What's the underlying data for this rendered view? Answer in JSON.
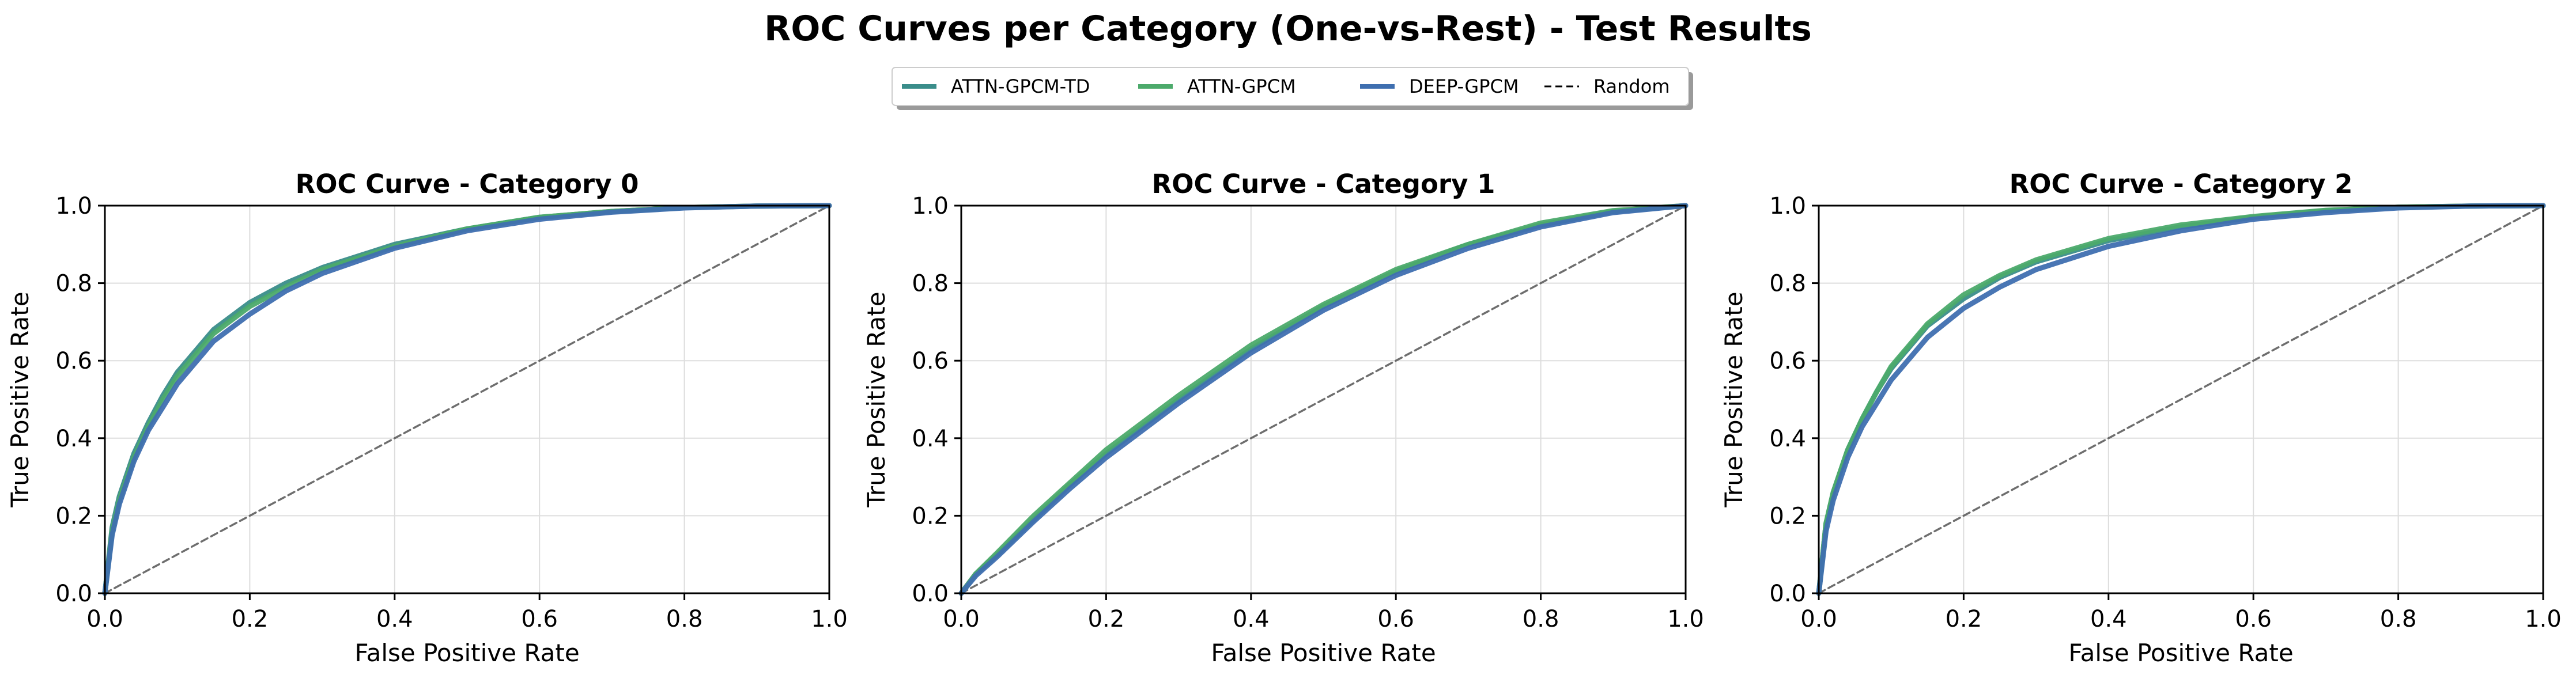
{
  "figure": {
    "title": "ROC Curves per Category (One-vs-Rest) - Test Results",
    "legend": {
      "placement": "top-center",
      "entries": [
        {
          "name": "ATTN-GPCM-TD",
          "color": "#3a8d8a",
          "style": "solid"
        },
        {
          "name": "ATTN-GPCM",
          "color": "#4caa6b",
          "style": "solid"
        },
        {
          "name": "DEEP-GPCM",
          "color": "#3f6fb0",
          "style": "solid"
        },
        {
          "name": "Random",
          "color": "#000000",
          "style": "dashed"
        }
      ]
    }
  },
  "chart_data": [
    {
      "type": "line",
      "title": "ROC Curve - Category 0",
      "xlabel": "False Positive Rate",
      "ylabel": "True Positive Rate",
      "xlim": [
        0,
        1
      ],
      "ylim": [
        0,
        1
      ],
      "xticks": [
        "0.0",
        "0.2",
        "0.4",
        "0.6",
        "0.8",
        "1.0"
      ],
      "yticks": [
        "0.0",
        "0.2",
        "0.4",
        "0.6",
        "0.8",
        "1.0"
      ],
      "grid": true,
      "x": [
        0,
        0.01,
        0.02,
        0.04,
        0.06,
        0.08,
        0.1,
        0.15,
        0.2,
        0.25,
        0.3,
        0.4,
        0.5,
        0.6,
        0.7,
        0.8,
        0.9,
        1.0
      ],
      "series": [
        {
          "name": "ATTN-GPCM-TD",
          "values": [
            0,
            0.17,
            0.25,
            0.36,
            0.44,
            0.51,
            0.57,
            0.68,
            0.75,
            0.8,
            0.84,
            0.9,
            0.94,
            0.97,
            0.985,
            0.995,
            0.999,
            1.0
          ]
        },
        {
          "name": "ATTN-GPCM",
          "values": [
            0,
            0.16,
            0.24,
            0.35,
            0.43,
            0.5,
            0.56,
            0.67,
            0.74,
            0.79,
            0.835,
            0.895,
            0.94,
            0.97,
            0.985,
            0.995,
            0.999,
            1.0
          ]
        },
        {
          "name": "DEEP-GPCM",
          "values": [
            0,
            0.15,
            0.23,
            0.34,
            0.42,
            0.48,
            0.54,
            0.65,
            0.72,
            0.78,
            0.825,
            0.89,
            0.935,
            0.965,
            0.983,
            0.994,
            0.999,
            1.0
          ]
        },
        {
          "name": "Random",
          "values": [
            0,
            0.01,
            0.02,
            0.04,
            0.06,
            0.08,
            0.1,
            0.15,
            0.2,
            0.25,
            0.3,
            0.4,
            0.5,
            0.6,
            0.7,
            0.8,
            0.9,
            1.0
          ]
        }
      ]
    },
    {
      "type": "line",
      "title": "ROC Curve - Category 1",
      "xlabel": "False Positive Rate",
      "ylabel": "True Positive Rate",
      "xlim": [
        0,
        1
      ],
      "ylim": [
        0,
        1
      ],
      "xticks": [
        "0.0",
        "0.2",
        "0.4",
        "0.6",
        "0.8",
        "1.0"
      ],
      "yticks": [
        "0.0",
        "0.2",
        "0.4",
        "0.6",
        "0.8",
        "1.0"
      ],
      "grid": true,
      "x": [
        0,
        0.02,
        0.05,
        0.1,
        0.15,
        0.2,
        0.3,
        0.4,
        0.5,
        0.6,
        0.7,
        0.8,
        0.9,
        1.0
      ],
      "series": [
        {
          "name": "ATTN-GPCM-TD",
          "values": [
            0,
            0.05,
            0.1,
            0.19,
            0.28,
            0.36,
            0.5,
            0.63,
            0.74,
            0.83,
            0.9,
            0.95,
            0.985,
            1.0
          ]
        },
        {
          "name": "ATTN-GPCM",
          "values": [
            0,
            0.05,
            0.105,
            0.2,
            0.285,
            0.37,
            0.51,
            0.64,
            0.745,
            0.835,
            0.9,
            0.955,
            0.987,
            1.0
          ]
        },
        {
          "name": "DEEP-GPCM",
          "values": [
            0,
            0.045,
            0.095,
            0.185,
            0.27,
            0.35,
            0.49,
            0.62,
            0.73,
            0.82,
            0.89,
            0.945,
            0.982,
            1.0
          ]
        },
        {
          "name": "Random",
          "values": [
            0,
            0.02,
            0.05,
            0.1,
            0.15,
            0.2,
            0.3,
            0.4,
            0.5,
            0.6,
            0.7,
            0.8,
            0.9,
            1.0
          ]
        }
      ]
    },
    {
      "type": "line",
      "title": "ROC Curve - Category 2",
      "xlabel": "False Positive Rate",
      "ylabel": "True Positive Rate",
      "xlim": [
        0,
        1
      ],
      "ylim": [
        0,
        1
      ],
      "xticks": [
        "0.0",
        "0.2",
        "0.4",
        "0.6",
        "0.8",
        "1.0"
      ],
      "yticks": [
        "0.0",
        "0.2",
        "0.4",
        "0.6",
        "0.8",
        "1.0"
      ],
      "grid": true,
      "x": [
        0,
        0.01,
        0.02,
        0.04,
        0.06,
        0.08,
        0.1,
        0.15,
        0.2,
        0.25,
        0.3,
        0.4,
        0.5,
        0.6,
        0.7,
        0.8,
        0.9,
        1.0
      ],
      "series": [
        {
          "name": "ATTN-GPCM-TD",
          "values": [
            0,
            0.18,
            0.26,
            0.37,
            0.45,
            0.52,
            0.58,
            0.69,
            0.76,
            0.815,
            0.855,
            0.91,
            0.945,
            0.97,
            0.987,
            0.996,
            0.999,
            1.0
          ]
        },
        {
          "name": "ATTN-GPCM",
          "values": [
            0,
            0.18,
            0.26,
            0.37,
            0.45,
            0.52,
            0.585,
            0.695,
            0.77,
            0.82,
            0.86,
            0.915,
            0.95,
            0.972,
            0.988,
            0.996,
            0.999,
            1.0
          ]
        },
        {
          "name": "DEEP-GPCM",
          "values": [
            0,
            0.16,
            0.24,
            0.35,
            0.43,
            0.49,
            0.55,
            0.66,
            0.735,
            0.79,
            0.835,
            0.895,
            0.935,
            0.965,
            0.982,
            0.994,
            0.999,
            1.0
          ]
        },
        {
          "name": "Random",
          "values": [
            0,
            0.01,
            0.02,
            0.04,
            0.06,
            0.08,
            0.1,
            0.15,
            0.2,
            0.25,
            0.3,
            0.4,
            0.5,
            0.6,
            0.7,
            0.8,
            0.9,
            1.0
          ]
        }
      ]
    }
  ]
}
